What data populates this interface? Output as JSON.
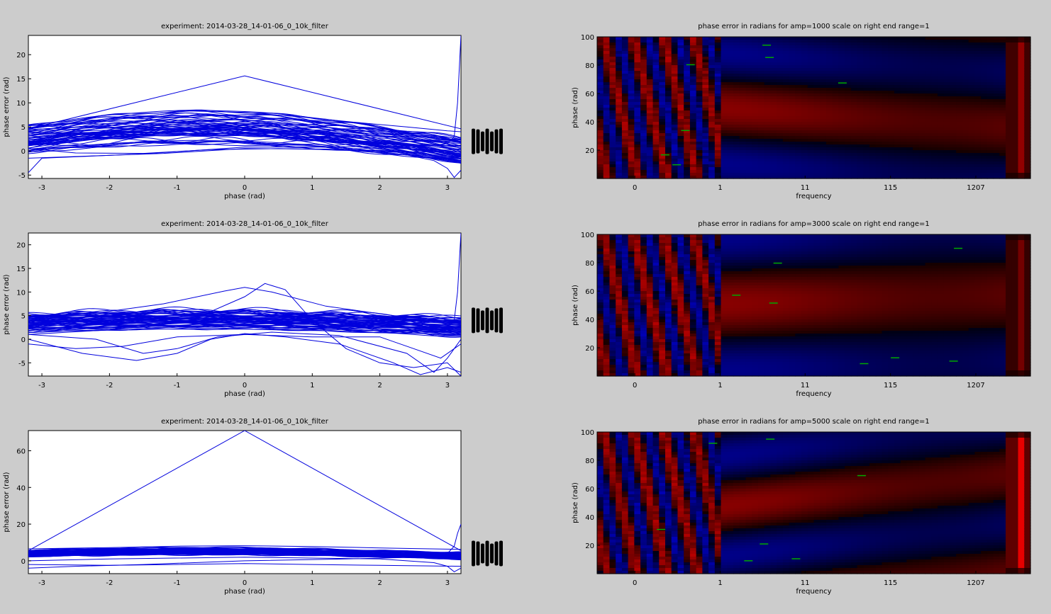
{
  "colors": {
    "figure_bg": "#cccccc",
    "axes_bg": "#ffffff",
    "line": "#0000dd",
    "heat_pos": "#cc0000",
    "heat_neg": "#0000cc",
    "marker": "#00aa00"
  },
  "chart_data": [
    {
      "type": "line",
      "title": "experiment: 2014-03-28_14-01-06_0_10k_filter",
      "xlabel": "phase (rad)",
      "ylabel": "phase error (rad)",
      "xlim": [
        -3.2,
        3.2
      ],
      "ylim": [
        -5.7,
        24
      ],
      "xticks": [
        -3,
        -2,
        -1,
        0,
        1,
        2,
        3
      ],
      "yticks": [
        -5,
        0,
        5,
        10,
        15,
        20
      ],
      "grid": false,
      "bundle": {
        "count": 60,
        "center_amp": 4.5,
        "center_offset": 1.0,
        "spread": 2.6
      },
      "series": [
        {
          "x": [
            -3.2,
            0,
            3.2
          ],
          "y": [
            4.6,
            15.6,
            4.6
          ]
        },
        {
          "x": [
            -3.2,
            -2.4,
            -1.6,
            -0.8,
            0,
            0.8,
            1.6,
            2.4,
            3.0,
            3.2
          ],
          "y": [
            4.6,
            6,
            7.6,
            8.3,
            8,
            7.1,
            6,
            5,
            4.2,
            4
          ]
        },
        {
          "x": [
            -3.2,
            -2.5,
            -1.5,
            -0.5,
            0.5,
            1.5,
            2.4,
            2.8,
            3.0,
            3.1,
            3.2
          ],
          "y": [
            0.5,
            -0.4,
            -0.5,
            0.3,
            0.5,
            0.2,
            -0.8,
            -2,
            -3.6,
            -5.5,
            -4
          ]
        },
        {
          "x": [
            -3.2,
            -2.2,
            -1.2,
            0,
            1.2,
            2.2,
            3.2
          ],
          "y": [
            -1.5,
            -1,
            -0.5,
            0.5,
            0.4,
            -0.2,
            -1.2
          ]
        },
        {
          "x": [
            -3.2,
            -3.0,
            -2.5,
            -1.5,
            0,
            1.5,
            2.6,
            3.0,
            3.1,
            3.15,
            3.2
          ],
          "y": [
            -4.5,
            -1.5,
            -1.2,
            -0.6,
            0.8,
            0.9,
            1.0,
            1.5,
            3,
            10,
            24
          ]
        }
      ]
    },
    {
      "type": "line",
      "title": "experiment: 2014-03-28_14-01-06_0_10k_filter",
      "xlabel": "phase (rad)",
      "ylabel": "phase error (rad)",
      "xlim": [
        -3.2,
        3.2
      ],
      "ylim": [
        -7.8,
        22.5
      ],
      "xticks": [
        -3,
        -2,
        -1,
        0,
        1,
        2,
        3
      ],
      "yticks": [
        -5,
        0,
        5,
        10,
        15,
        20
      ],
      "grid": false,
      "bundle": {
        "count": 60,
        "center_amp": 1.5,
        "center_offset": 3.0,
        "spread": 2.2
      },
      "series": [
        {
          "x": [
            -3.2,
            -2.2,
            -1.2,
            -0.3,
            0,
            0.4,
            1.2,
            2.2,
            3.2
          ],
          "y": [
            4.8,
            5.5,
            7.5,
            10.2,
            11,
            10,
            7,
            5,
            4.5
          ]
        },
        {
          "x": [
            -3.2,
            -2,
            -0.8,
            0,
            0.3,
            0.6,
            1.0,
            1.5,
            2.0,
            2.5,
            3.0,
            3.2
          ],
          "y": [
            1,
            2,
            4,
            9,
            11.8,
            10.5,
            4,
            -2,
            -5,
            -6,
            -5,
            -7.8
          ]
        },
        {
          "x": [
            -3.2,
            -2.4,
            -1.6,
            -1.0,
            -0.5,
            0,
            0.6,
            1.4,
            2.2,
            2.6,
            3.0,
            3.2
          ],
          "y": [
            0,
            -3,
            -4.5,
            -3,
            0,
            1.2,
            0.5,
            -1,
            -5,
            -7.5,
            -6,
            -7
          ]
        },
        {
          "x": [
            -3.2,
            -2.2,
            -1.5,
            -1.0,
            -0.4,
            0.4,
            1.4,
            2.4,
            2.8,
            3.0,
            3.2
          ],
          "y": [
            1,
            0,
            -3,
            -2,
            0.5,
            1.5,
            0.8,
            -3,
            -7,
            -4,
            0
          ]
        },
        {
          "x": [
            -3.2,
            -2.5,
            -1.8,
            -1.0,
            0,
            1.0,
            2.0,
            2.5,
            2.9,
            3.1,
            3.2
          ],
          "y": [
            -1,
            -2,
            -1.5,
            0.5,
            1,
            0.5,
            0.5,
            -2,
            -4,
            -2,
            -1
          ]
        },
        {
          "x": [
            -3.2,
            -2,
            -1,
            0,
            1,
            2,
            3.0,
            3.1,
            3.15,
            3.2
          ],
          "y": [
            2.5,
            2.6,
            2.8,
            3,
            2.8,
            2.6,
            2.6,
            4,
            10,
            22.5
          ]
        }
      ]
    },
    {
      "type": "line",
      "title": "experiment: 2014-03-28_14-01-06_0_10k_filter",
      "xlabel": "phase (rad)",
      "ylabel": "phase error (rad)",
      "xlim": [
        -3.2,
        3.2
      ],
      "ylim": [
        -7,
        71
      ],
      "xticks": [
        -3,
        -2,
        -1,
        0,
        1,
        2,
        3
      ],
      "yticks": [
        0,
        20,
        40,
        60
      ],
      "grid": false,
      "bundle": {
        "count": 60,
        "center_amp": 2.5,
        "center_offset": 3.0,
        "spread": 1.8
      },
      "series": [
        {
          "x": [
            -3.2,
            0,
            3.2
          ],
          "y": [
            5.5,
            71,
            5.5
          ]
        },
        {
          "x": [
            -3.2,
            -2,
            -1,
            0,
            1,
            2,
            3.2
          ],
          "y": [
            6.5,
            7.2,
            8,
            8.2,
            7.8,
            7,
            6.2
          ]
        },
        {
          "x": [
            -3.2,
            -2,
            -1,
            0,
            1,
            2,
            3.2
          ],
          "y": [
            -2,
            -2.5,
            -2,
            -1.5,
            -2,
            -2.5,
            -3
          ]
        },
        {
          "x": [
            -3.2,
            -2.5,
            -1.5,
            0,
            1.5,
            2.6,
            3.0,
            3.1,
            3.15,
            3.2
          ],
          "y": [
            -4,
            -3,
            -2,
            0,
            1,
            2,
            4,
            8,
            15,
            20
          ]
        },
        {
          "x": [
            -3.2,
            -2,
            0,
            2,
            2.8,
            3.0,
            3.1,
            3.2
          ],
          "y": [
            0,
            1,
            2,
            1,
            -1,
            -3,
            -6,
            -4
          ]
        }
      ]
    },
    {
      "type": "heatmap",
      "title": "phase error in radians for amp=1000 scale on right end range=1",
      "xlabel": "frequency",
      "ylabel": "phase (rad)",
      "ylim": [
        0,
        100
      ],
      "yticks": [
        20,
        40,
        60,
        80,
        100
      ],
      "xticklabels": [
        "0",
        "1",
        "11",
        "115",
        "1207"
      ],
      "band_width": 20,
      "band_centers": [
        55,
        35
      ],
      "right_column_intensity": 0.6
    },
    {
      "type": "heatmap",
      "title": "phase error in radians for amp=3000 scale on right end range=1",
      "xlabel": "frequency",
      "ylabel": "phase (rad)",
      "ylim": [
        0,
        100
      ],
      "yticks": [
        20,
        40,
        60,
        80,
        100
      ],
      "xticklabels": [
        "0",
        "1",
        "11",
        "115",
        "1207"
      ],
      "band_width": 24,
      "band_centers": [
        48,
        58
      ],
      "right_column_intensity": 0.45
    },
    {
      "type": "heatmap",
      "title": "phase error in radians for amp=5000 scale on right end range=1",
      "xlabel": "frequency",
      "ylabel": "phase (rad)",
      "ylim": [
        0,
        100
      ],
      "yticks": [
        20,
        40,
        60,
        80,
        100
      ],
      "xticklabels": [
        "0",
        "1",
        "11",
        "115",
        "1207"
      ],
      "band_width": 18,
      "band_centers": [
        38,
        72
      ],
      "right_column_intensity": 1.0
    }
  ]
}
